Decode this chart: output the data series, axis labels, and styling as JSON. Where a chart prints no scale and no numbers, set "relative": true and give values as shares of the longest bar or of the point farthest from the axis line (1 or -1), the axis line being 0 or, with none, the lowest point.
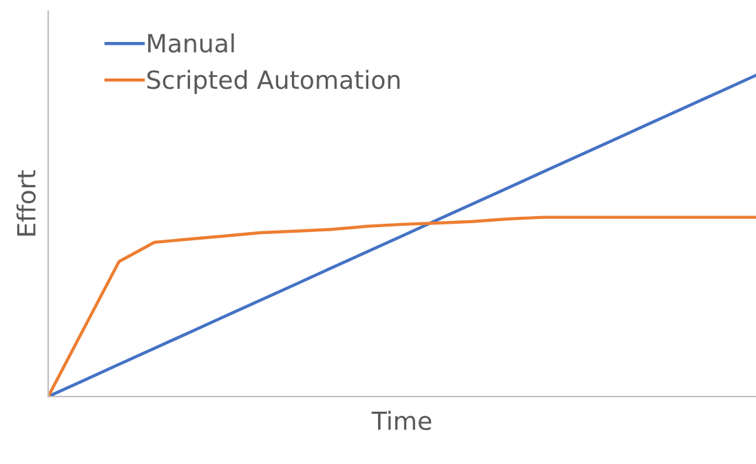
{
  "chart_data": {
    "type": "line",
    "relative": true,
    "xlabel": "Time",
    "ylabel": "Effort",
    "legend": "top left",
    "grid": false,
    "marker": "none",
    "line_style": "solid",
    "categories": [
      null,
      null,
      null,
      null,
      null,
      null,
      null,
      null,
      null,
      null,
      null,
      null,
      null,
      null,
      null,
      null,
      null,
      null,
      null,
      null,
      null
    ],
    "series": [
      {
        "name": "Manual",
        "color": "#4472c4",
        "values": [
          0,
          0.05,
          0.1,
          0.15,
          0.2,
          0.25,
          0.3,
          0.35,
          0.4,
          0.45,
          0.5,
          0.55,
          0.6,
          0.65,
          0.7,
          0.75,
          0.8,
          0.85,
          0.9,
          0.95,
          1
        ]
      },
      {
        "name": "Scripted Automation",
        "color": "#ed7d31",
        "values": [
          0,
          0.21,
          0.42,
          0.48,
          0.49,
          0.5,
          0.51,
          0.515,
          0.52,
          0.53,
          0.536,
          0.54,
          0.545,
          0.553,
          0.558,
          0.558,
          0.558,
          0.558,
          0.558,
          0.558,
          0.558
        ]
      }
    ]
  }
}
